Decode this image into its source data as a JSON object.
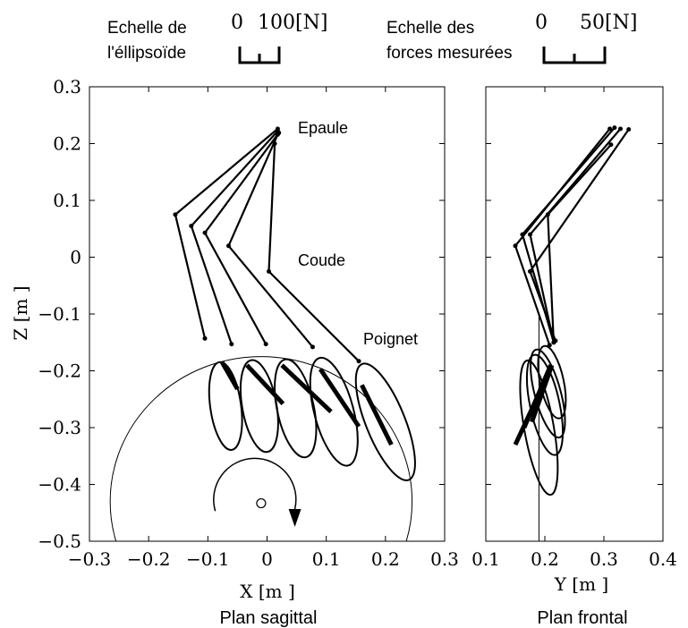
{
  "legend": {
    "ellipsoid_label_line1": "Echelle de",
    "ellipsoid_label_line2": "l'éllipsoïde",
    "ellipsoid_scale_zero": "0",
    "ellipsoid_scale_max": "100[N]",
    "force_label_line1": "Echelle des",
    "force_label_line2": "forces mesurées",
    "force_scale_zero": "0",
    "force_scale_max": "50[N]"
  },
  "chart_data": [
    {
      "type": "line",
      "panel": "sagittal",
      "title": "Plan sagittal",
      "xlabel": "X [m ]",
      "ylabel": "Z [m ]",
      "xlim": [
        -0.3,
        0.3
      ],
      "ylim": [
        -0.5,
        0.3
      ],
      "xticks": [
        -0.3,
        -0.2,
        -0.1,
        0,
        0.1,
        0.2,
        0.3
      ],
      "yticks": [
        0.3,
        0.2,
        0.1,
        0,
        -0.1,
        -0.2,
        -0.3,
        -0.4,
        -0.5
      ],
      "xtick_labels": [
        "−0.3",
        "−0.2",
        "−0.1",
        "0",
        "0.1",
        "0.2",
        "0.3"
      ],
      "ytick_labels": [
        "0.3",
        "0.2",
        "0.1",
        "0",
        "−0.1",
        "−0.2",
        "−0.3",
        "−0.4",
        "−0.5"
      ],
      "grid": false,
      "annotations": {
        "shoulder": "Epaule",
        "elbow": "Coude",
        "wrist": "Poignet"
      },
      "arm_postures": [
        {
          "shoulder": [
            0.018,
            0.226
          ],
          "elbow": [
            -0.155,
            0.075
          ],
          "wrist": [
            -0.105,
            -0.143
          ]
        },
        {
          "shoulder": [
            0.018,
            0.222
          ],
          "elbow": [
            -0.128,
            0.055
          ],
          "wrist": [
            -0.06,
            -0.153
          ]
        },
        {
          "shoulder": [
            0.02,
            0.219
          ],
          "elbow": [
            -0.105,
            0.043
          ],
          "wrist": [
            -0.002,
            -0.153
          ]
        },
        {
          "shoulder": [
            0.018,
            0.216
          ],
          "elbow": [
            -0.065,
            0.02
          ],
          "wrist": [
            0.077,
            -0.158
          ]
        },
        {
          "shoulder": [
            0.013,
            0.2
          ],
          "elbow": [
            0.003,
            -0.025
          ],
          "wrist": [
            0.155,
            -0.183
          ]
        }
      ],
      "force_segments": [
        [
          [
            -0.076,
            -0.185
          ],
          [
            -0.05,
            -0.232
          ]
        ],
        [
          [
            -0.034,
            -0.19
          ],
          [
            0.027,
            -0.258
          ]
        ],
        [
          [
            0.025,
            -0.19
          ],
          [
            0.108,
            -0.272
          ]
        ],
        [
          [
            0.09,
            -0.197
          ],
          [
            0.155,
            -0.298
          ]
        ],
        [
          [
            0.16,
            -0.225
          ],
          [
            0.21,
            -0.33
          ]
        ]
      ],
      "ellipsoids": [
        {
          "center": [
            -0.07,
            -0.262
          ],
          "rx": 0.026,
          "ry": 0.078,
          "angle": 8
        },
        {
          "center": [
            -0.013,
            -0.262
          ],
          "rx": 0.029,
          "ry": 0.082,
          "angle": 10
        },
        {
          "center": [
            0.048,
            -0.266
          ],
          "rx": 0.031,
          "ry": 0.088,
          "angle": 12
        },
        {
          "center": [
            0.113,
            -0.272
          ],
          "rx": 0.033,
          "ry": 0.098,
          "angle": 15
        },
        {
          "center": [
            0.2,
            -0.29
          ],
          "rx": 0.033,
          "ry": 0.11,
          "angle": 22
        }
      ],
      "trajectory_circle": {
        "center": [
          -0.01,
          -0.43
        ],
        "radius": 0.255
      },
      "center_point": [
        -0.01,
        -0.43
      ]
    },
    {
      "type": "line",
      "panel": "frontal",
      "title": "Plan frontal",
      "xlabel": "Y [m ]",
      "xlim": [
        0.1,
        0.4
      ],
      "ylim": [
        -0.5,
        0.3
      ],
      "xticks": [
        0.1,
        0.2,
        0.3,
        0.4
      ],
      "xtick_labels": [
        "0.1",
        "0.2",
        "0.3",
        "0.4"
      ],
      "grid": false,
      "arm_postures": [
        {
          "shoulder": [
            0.31,
            0.226
          ],
          "elbow": [
            0.15,
            0.02
          ],
          "wrist": [
            0.208,
            -0.155
          ]
        },
        {
          "shoulder": [
            0.318,
            0.228
          ],
          "elbow": [
            0.162,
            0.04
          ],
          "wrist": [
            0.215,
            -0.15
          ]
        },
        {
          "shoulder": [
            0.328,
            0.226
          ],
          "elbow": [
            0.175,
            0.04
          ],
          "wrist": [
            0.215,
            -0.15
          ]
        },
        {
          "shoulder": [
            0.342,
            0.225
          ],
          "elbow": [
            0.175,
            -0.025
          ],
          "wrist": [
            0.218,
            -0.147
          ]
        },
        {
          "shoulder": [
            0.312,
            0.198
          ],
          "elbow": [
            0.205,
            0.075
          ],
          "wrist": [
            0.215,
            -0.15
          ]
        }
      ],
      "force_segments": [
        [
          [
            0.208,
            -0.2
          ],
          [
            0.15,
            -0.33
          ]
        ],
        [
          [
            0.21,
            -0.19
          ],
          [
            0.165,
            -0.3
          ]
        ],
        [
          [
            0.212,
            -0.19
          ],
          [
            0.178,
            -0.29
          ]
        ]
      ],
      "ellipsoids": [
        {
          "center": [
            0.19,
            -0.3
          ],
          "rx": 0.025,
          "ry": 0.12,
          "angle": 10
        },
        {
          "center": [
            0.2,
            -0.26
          ],
          "rx": 0.025,
          "ry": 0.09,
          "angle": 12
        },
        {
          "center": [
            0.205,
            -0.24
          ],
          "rx": 0.022,
          "ry": 0.08,
          "angle": 15
        },
        {
          "center": [
            0.212,
            -0.22
          ],
          "rx": 0.02,
          "ry": 0.065,
          "angle": 12
        }
      ],
      "vertical_line_x": 0.19
    }
  ]
}
